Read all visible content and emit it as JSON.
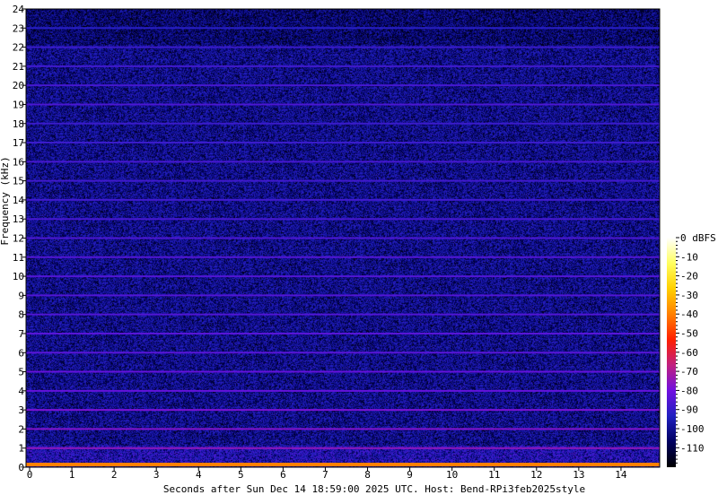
{
  "chart_data": {
    "type": "heatmap",
    "title": "",
    "xlabel": "Seconds after Sun Dec 14 18:59:00 2025 UTC. Host: Bend-RPi3feb2025style",
    "ylabel": "Frequency (kHz)",
    "xlim": [
      0,
      15
    ],
    "ylim": [
      0,
      24
    ],
    "x_ticks": [
      "0",
      "1",
      "2",
      "3",
      "4",
      "5",
      "6",
      "7",
      "8",
      "9",
      "10",
      "11",
      "12",
      "13",
      "14"
    ],
    "y_ticks": [
      "0",
      "1",
      "2",
      "3",
      "4",
      "5",
      "6",
      "7",
      "8",
      "9",
      "10",
      "11",
      "12",
      "13",
      "14",
      "15",
      "16",
      "17",
      "18",
      "19",
      "20",
      "21",
      "22",
      "23",
      "24"
    ],
    "colorbar": {
      "label": "dBFS",
      "range": [
        -120,
        0
      ],
      "ticks": [
        "0 dBFS",
        "-10",
        "-20",
        "-30",
        "-40",
        "-50",
        "-60",
        "-70",
        "-80",
        "-90",
        "-100",
        "-110"
      ],
      "colormap": [
        "#000000",
        "#000060",
        "#2020c0",
        "#7010e0",
        "#c02080",
        "#ff2000",
        "#ff8000",
        "#ffd000",
        "#ffff60",
        "#ffffff"
      ]
    },
    "background_level_dbfs": -95,
    "tonal_lines": [
      {
        "freq_khz": 0.05,
        "level_dbfs": -40
      },
      {
        "freq_khz": 1,
        "level_dbfs": -75
      },
      {
        "freq_khz": 2,
        "level_dbfs": -77
      },
      {
        "freq_khz": 3,
        "level_dbfs": -78
      },
      {
        "freq_khz": 4,
        "level_dbfs": -82
      },
      {
        "freq_khz": 5,
        "level_dbfs": -82
      },
      {
        "freq_khz": 6,
        "level_dbfs": -84
      },
      {
        "freq_khz": 7,
        "level_dbfs": -84
      },
      {
        "freq_khz": 8,
        "level_dbfs": -85
      },
      {
        "freq_khz": 9,
        "level_dbfs": -85
      },
      {
        "freq_khz": 10,
        "level_dbfs": -85
      },
      {
        "freq_khz": 11,
        "level_dbfs": -85
      },
      {
        "freq_khz": 12,
        "level_dbfs": -86
      },
      {
        "freq_khz": 13,
        "level_dbfs": -87
      },
      {
        "freq_khz": 14,
        "level_dbfs": -88
      },
      {
        "freq_khz": 15,
        "level_dbfs": -88
      },
      {
        "freq_khz": 16,
        "level_dbfs": -87
      },
      {
        "freq_khz": 17,
        "level_dbfs": -89
      },
      {
        "freq_khz": 18,
        "level_dbfs": -89
      },
      {
        "freq_khz": 19,
        "level_dbfs": -86
      },
      {
        "freq_khz": 20,
        "level_dbfs": -87
      },
      {
        "freq_khz": 21,
        "level_dbfs": -88
      },
      {
        "freq_khz": 22,
        "level_dbfs": -89
      },
      {
        "freq_khz": 23,
        "level_dbfs": -92
      }
    ]
  }
}
